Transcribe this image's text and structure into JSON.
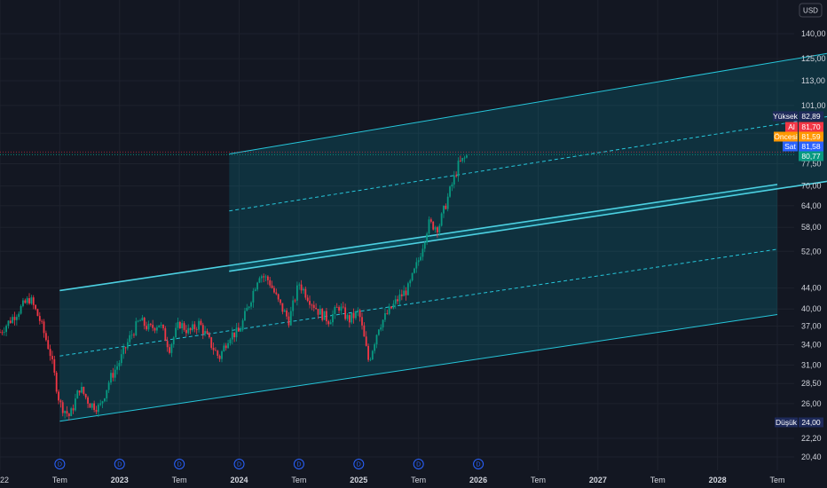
{
  "currency_button": "USD",
  "chart_data": {
    "type": "candlestick",
    "y_scale": "log",
    "y_ticks": [
      "140,00",
      "125,00",
      "113,00",
      "101,00",
      "89,00",
      "77,50",
      "70,00",
      "64,00",
      "58,00",
      "52,00",
      "44,00",
      "40,00",
      "37,00",
      "34,00",
      "31,00",
      "28,50",
      "26,00",
      "22,20",
      "20,40"
    ],
    "y_tick_values": [
      140,
      125,
      113,
      101,
      89,
      77.5,
      70,
      64,
      58,
      52,
      44,
      40,
      37,
      34,
      31,
      28.5,
      26,
      22.2,
      20.4
    ],
    "x_ticks": [
      {
        "label": "22",
        "date": "2022-01"
      },
      {
        "label": "Tem",
        "date": "2022-07"
      },
      {
        "label": "2023",
        "date": "2023-01"
      },
      {
        "label": "Tem",
        "date": "2023-07"
      },
      {
        "label": "2024",
        "date": "2024-01"
      },
      {
        "label": "Tem",
        "date": "2024-07"
      },
      {
        "label": "2025",
        "date": "2025-01"
      },
      {
        "label": "Tem",
        "date": "2025-07"
      },
      {
        "label": "2026",
        "date": "2026-01"
      },
      {
        "label": "Tem",
        "date": "2026-07"
      },
      {
        "label": "2027",
        "date": "2027-01"
      },
      {
        "label": "Tem",
        "date": "2027-07"
      },
      {
        "label": "2028",
        "date": "2028-01"
      },
      {
        "label": "Tem",
        "date": "2028-07"
      }
    ],
    "price_tags": [
      {
        "label": "Yüksek",
        "value": "82,89",
        "color": "#1e2a5a"
      },
      {
        "label": "Al",
        "value": "81,70",
        "color": "#f23645"
      },
      {
        "label": "Öncesi",
        "value": "81,59",
        "color": "#ff9800"
      },
      {
        "label": "Sat",
        "value": "81,58",
        "color": "#2962ff"
      },
      {
        "label": "",
        "value": "80,77",
        "color": "#089981"
      },
      {
        "label": "Düşük",
        "value": "24,00",
        "color": "#1e2a5a"
      }
    ],
    "dividend_marker": "D",
    "dividend_dates": [
      "2022-07",
      "2023-01",
      "2023-07",
      "2024-01",
      "2024-07",
      "2025-01",
      "2025-07",
      "2026-01"
    ],
    "channels": [
      {
        "name": "",
        "start": "2022-07",
        "end": "2028-07",
        "lower_start": 24.0,
        "lower_end": 39.0,
        "upper_start": 43.5,
        "upper_end": 70.5,
        "mid_start": 32.3,
        "mid_end": 52.5
      },
      {
        "name": "",
        "start": "2023-12",
        "end": "2028-12",
        "lower_start": 47.5,
        "lower_end": 71.5,
        "upper_start": 81.0,
        "upper_end": 128.0,
        "mid_start": 62.5,
        "mid_end": 96.0
      }
    ],
    "price_path": [
      [
        "2022-01",
        36.0
      ],
      [
        "2022-03",
        40.0
      ],
      [
        "2022-04",
        42.0
      ],
      [
        "2022-05",
        38.0
      ],
      [
        "2022-06",
        33.0
      ],
      [
        "2022-07",
        26.0
      ],
      [
        "2022-08",
        24.5
      ],
      [
        "2022-09",
        28.0
      ],
      [
        "2022-10",
        26.0
      ],
      [
        "2022-11",
        25.5
      ],
      [
        "2022-12",
        29.0
      ],
      [
        "2023-01",
        31.5
      ],
      [
        "2023-02",
        35.0
      ],
      [
        "2023-03",
        38.0
      ],
      [
        "2023-04",
        36.5
      ],
      [
        "2023-05",
        37.5
      ],
      [
        "2023-06",
        33.5
      ],
      [
        "2023-07",
        37.5
      ],
      [
        "2023-08",
        36.0
      ],
      [
        "2023-09",
        37.5
      ],
      [
        "2023-10",
        34.5
      ],
      [
        "2023-11",
        32.0
      ],
      [
        "2023-12",
        35.5
      ],
      [
        "2024-01",
        36.0
      ],
      [
        "2024-02",
        41.0
      ],
      [
        "2024-03",
        47.0
      ],
      [
        "2024-04",
        45.5
      ],
      [
        "2024-05",
        41.0
      ],
      [
        "2024-06",
        38.0
      ],
      [
        "2024-07",
        45.0
      ],
      [
        "2024-08",
        42.0
      ],
      [
        "2024-09",
        39.5
      ],
      [
        "2024-10",
        38.0
      ],
      [
        "2024-11",
        40.5
      ],
      [
        "2024-12",
        38.0
      ],
      [
        "2025-01",
        39.5
      ],
      [
        "2025-02",
        31.5
      ],
      [
        "2025-03",
        37.0
      ],
      [
        "2025-04",
        39.5
      ],
      [
        "2025-05",
        42.0
      ],
      [
        "2025-06",
        44.0
      ],
      [
        "2025-07",
        50.0
      ],
      [
        "2025-08",
        59.0
      ],
      [
        "2025-09",
        58.0
      ],
      [
        "2025-10",
        67.0
      ],
      [
        "2025-11",
        77.0
      ],
      [
        "2025-12",
        80.8
      ]
    ]
  }
}
